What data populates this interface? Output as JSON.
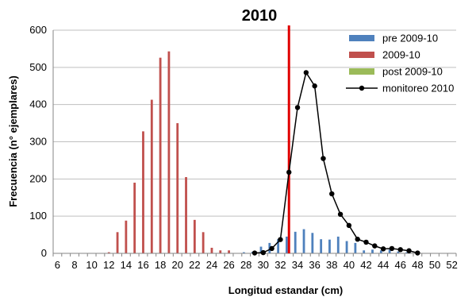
{
  "chart_data": {
    "type": "bar",
    "title": "2010",
    "xlabel": "Longitud estandar (cm)",
    "ylabel": "Frecuencia (n° ejemplares)",
    "ylim": [
      0,
      600
    ],
    "yticks": [
      0,
      100,
      200,
      300,
      400,
      500,
      600
    ],
    "categories": [
      6,
      7,
      8,
      9,
      10,
      11,
      12,
      13,
      14,
      15,
      16,
      17,
      18,
      19,
      20,
      21,
      22,
      23,
      24,
      25,
      26,
      27,
      28,
      29,
      30,
      31,
      32,
      33,
      34,
      35,
      36,
      37,
      38,
      39,
      40,
      41,
      42,
      43,
      44,
      45,
      46,
      47,
      48,
      49,
      50,
      51,
      52
    ],
    "tick_labels": [
      "6",
      "8",
      "10",
      "12",
      "14",
      "16",
      "18",
      "20",
      "22",
      "24",
      "26",
      "28",
      "30",
      "32",
      "34",
      "36",
      "38",
      "40",
      "42",
      "44",
      "46",
      "48",
      "50",
      "52"
    ],
    "grid": "horizontal",
    "legend_position": "top-right",
    "reference_line_x": 33,
    "series": [
      {
        "name": "pre 2009-10",
        "kind": "bar",
        "color": "#4F81BD",
        "values": [
          0,
          0,
          0,
          0,
          0,
          0,
          0,
          0,
          0,
          0,
          0,
          0,
          0,
          0,
          0,
          0,
          0,
          0,
          0,
          0,
          0,
          0,
          3,
          4,
          18,
          28,
          38,
          45,
          58,
          65,
          55,
          38,
          37,
          45,
          33,
          28,
          8,
          10,
          8,
          10,
          5,
          3,
          0,
          0,
          0,
          0,
          0
        ]
      },
      {
        "name": "2009-10",
        "kind": "bar",
        "color": "#C0504D",
        "values": [
          0,
          0,
          0,
          0,
          0,
          0,
          3,
          57,
          88,
          190,
          328,
          413,
          526,
          543,
          350,
          205,
          90,
          57,
          15,
          8,
          8,
          0,
          0,
          0,
          0,
          0,
          0,
          0,
          0,
          0,
          0,
          0,
          0,
          0,
          0,
          0,
          0,
          0,
          0,
          0,
          0,
          0,
          0,
          0,
          0,
          0,
          0
        ]
      },
      {
        "name": "post 2009-10",
        "kind": "bar",
        "color": "#9BBB59",
        "values": [
          0,
          0,
          0,
          0,
          0,
          0,
          0,
          0,
          0,
          0,
          0,
          0,
          0,
          0,
          0,
          0,
          0,
          0,
          0,
          0,
          0,
          0,
          0,
          0,
          0,
          0,
          0,
          0,
          0,
          0,
          0,
          0,
          0,
          0,
          0,
          0,
          0,
          0,
          0,
          0,
          0,
          0,
          0,
          0,
          0,
          0,
          0
        ]
      },
      {
        "name": "monitoreo 2010",
        "kind": "line",
        "color": "#000000",
        "x": [
          29,
          30,
          31,
          32,
          33,
          34,
          35,
          36,
          37,
          38,
          39,
          40,
          41,
          42,
          43,
          44,
          45,
          46,
          47,
          48
        ],
        "values": [
          1,
          2,
          13,
          37,
          218,
          392,
          486,
          450,
          255,
          160,
          105,
          75,
          38,
          30,
          20,
          12,
          13,
          10,
          7,
          1
        ]
      }
    ]
  }
}
